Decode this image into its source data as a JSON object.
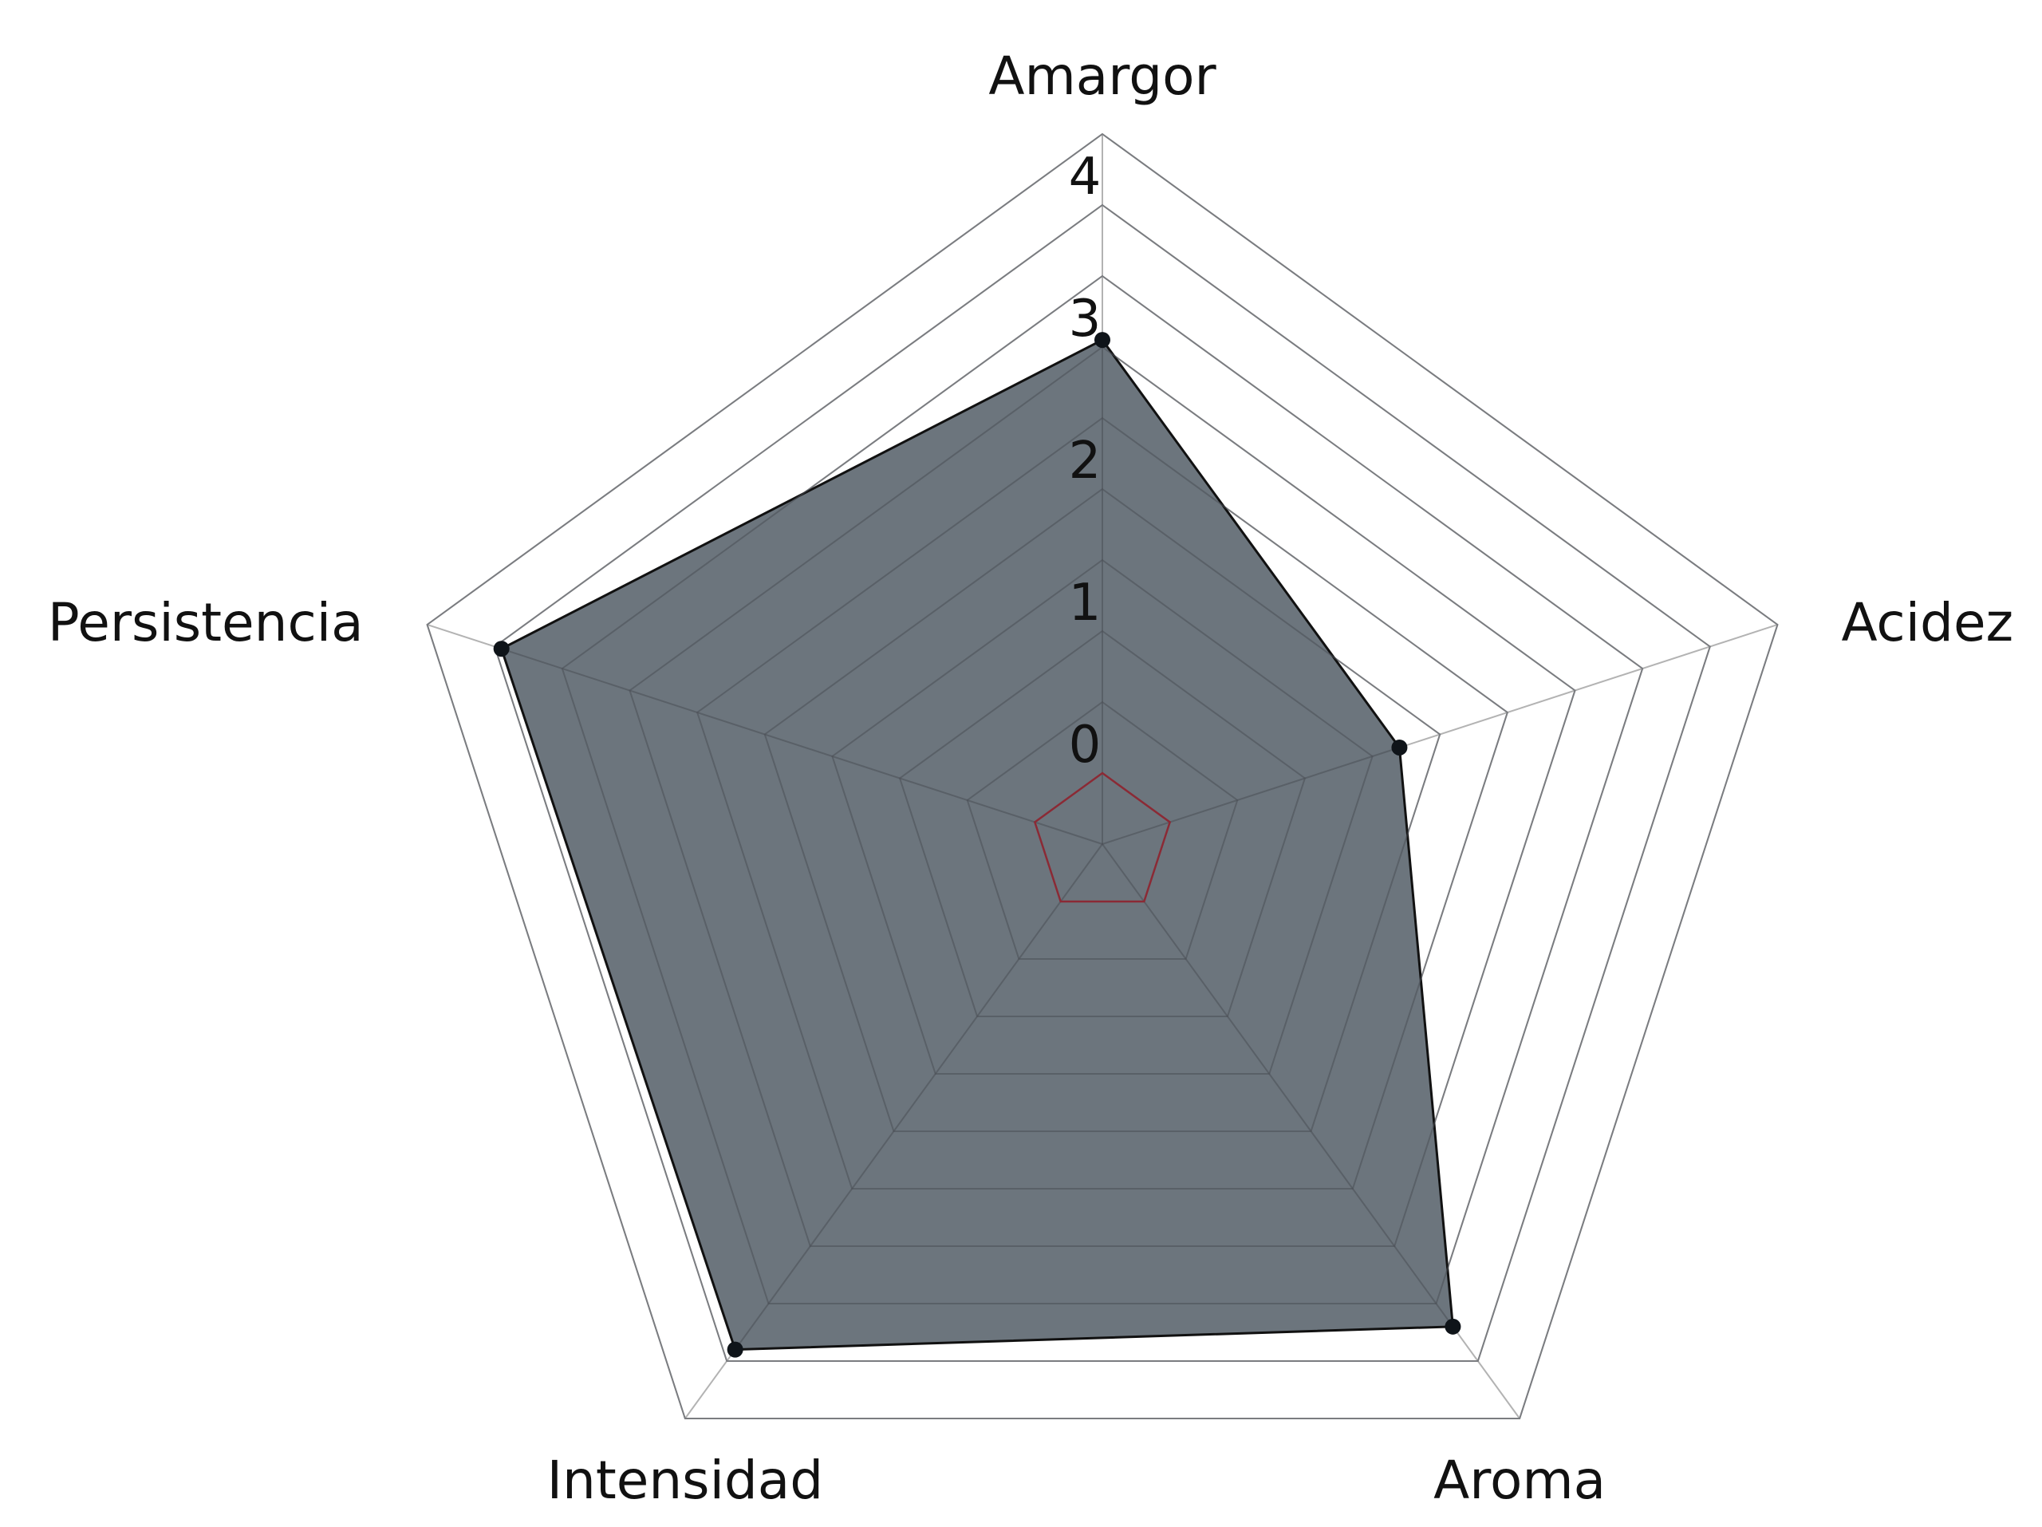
{
  "colors": {
    "fill": "#6c757d",
    "fill_opacity": 1,
    "outline": "#111111",
    "points": "#0f1419",
    "grid_outer": "#b3b3b3",
    "grid_inner": "#4a4f55",
    "zero_ring": "#8b2a35",
    "background": "#ffffff"
  },
  "chart_data": {
    "type": "radar",
    "axes": [
      "Amargor",
      "Acidez",
      "Aroma",
      "Intensidad",
      "Persistencia"
    ],
    "series": [
      {
        "values": [
          3.05,
          1.7,
          3.7,
          3.9,
          3.95
        ]
      }
    ],
    "rlim": [
      -0.5,
      4.5
    ],
    "rings": [
      -0.5,
      0,
      0.5,
      1,
      1.5,
      2,
      2.5,
      3,
      3.5,
      4,
      4.5
    ],
    "tick_values": [
      0,
      1,
      2,
      3,
      4
    ],
    "tick_labels": [
      "0",
      "1",
      "2",
      "3",
      "4"
    ],
    "grid": true,
    "legend": "none"
  }
}
